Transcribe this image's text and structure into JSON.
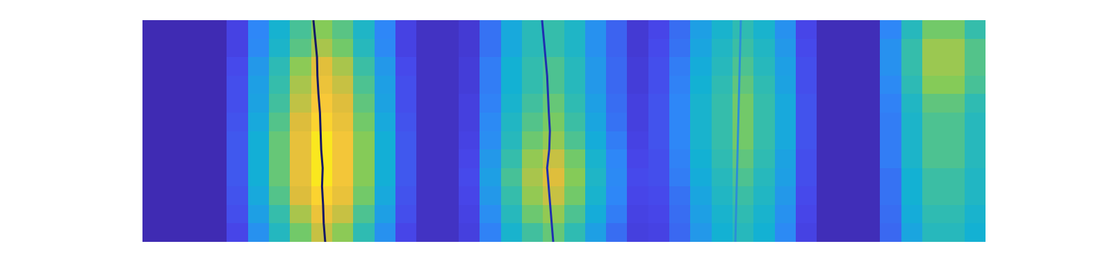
{
  "chart_data": {
    "type": "heatmap",
    "x": [
      0.5,
      1.5,
      2.5,
      3.5,
      4.5,
      5.5,
      6.5,
      7.5,
      8.5,
      9.5,
      10.5,
      11.5,
      12.5,
      13.5,
      14.5,
      15.5,
      16.5,
      17.5,
      18.5,
      19.5,
      20.5,
      21.5,
      22.5,
      23.5,
      24.5,
      25.5,
      26.5,
      27.5,
      28.5,
      29.5,
      30.5,
      31.5,
      32.5,
      33.5,
      34.5,
      35.5,
      36.5,
      37.5,
      38.5,
      39.5
    ],
    "y": [
      0.5,
      1.5,
      2.5,
      3.5,
      4.5,
      5.5,
      6.5,
      7.5,
      8.5,
      9.5,
      10.5,
      11.5
    ],
    "cells": [
      [
        0.02,
        0.02,
        0.02,
        0.02,
        0.12,
        0.28,
        0.44,
        0.6,
        0.72,
        0.64,
        0.48,
        0.28,
        0.12,
        0.05,
        0.05,
        0.1,
        0.24,
        0.4,
        0.52,
        0.58,
        0.48,
        0.32,
        0.2,
        0.1,
        0.11,
        0.19,
        0.3,
        0.38,
        0.45,
        0.38,
        0.26,
        0.11,
        0.03,
        0.03,
        0.03,
        0.19,
        0.34,
        0.45,
        0.45,
        0.38
      ],
      [
        0.02,
        0.02,
        0.02,
        0.02,
        0.14,
        0.32,
        0.5,
        0.68,
        0.81,
        0.72,
        0.54,
        0.32,
        0.14,
        0.05,
        0.05,
        0.11,
        0.27,
        0.45,
        0.59,
        0.65,
        0.54,
        0.36,
        0.23,
        0.11,
        0.12,
        0.2,
        0.32,
        0.4,
        0.48,
        0.4,
        0.28,
        0.12,
        0.03,
        0.03,
        0.03,
        0.2,
        0.36,
        0.48,
        0.48,
        0.4
      ],
      [
        0.02,
        0.02,
        0.02,
        0.02,
        0.15,
        0.35,
        0.55,
        0.75,
        0.9,
        0.8,
        0.6,
        0.35,
        0.15,
        0.05,
        0.05,
        0.12,
        0.3,
        0.5,
        0.65,
        0.72,
        0.6,
        0.4,
        0.25,
        0.12,
        0.13,
        0.21,
        0.34,
        0.43,
        0.51,
        0.43,
        0.3,
        0.13,
        0.03,
        0.03,
        0.03,
        0.21,
        0.38,
        0.51,
        0.51,
        0.43
      ],
      [
        0.02,
        0.02,
        0.02,
        0.02,
        0.16,
        0.37,
        0.58,
        0.79,
        0.95,
        0.84,
        0.63,
        0.37,
        0.16,
        0.05,
        0.05,
        0.13,
        0.32,
        0.53,
        0.68,
        0.76,
        0.63,
        0.42,
        0.26,
        0.13,
        0.14,
        0.23,
        0.36,
        0.45,
        0.54,
        0.45,
        0.32,
        0.14,
        0.03,
        0.03,
        0.03,
        0.21,
        0.38,
        0.51,
        0.51,
        0.43
      ],
      [
        0.02,
        0.02,
        0.02,
        0.02,
        0.16,
        0.37,
        0.58,
        0.79,
        0.95,
        0.84,
        0.63,
        0.37,
        0.16,
        0.05,
        0.05,
        0.12,
        0.3,
        0.5,
        0.65,
        0.72,
        0.6,
        0.4,
        0.25,
        0.12,
        0.14,
        0.24,
        0.38,
        0.48,
        0.57,
        0.48,
        0.33,
        0.14,
        0.03,
        0.03,
        0.03,
        0.23,
        0.41,
        0.54,
        0.54,
        0.45
      ],
      [
        0.02,
        0.02,
        0.02,
        0.02,
        0.16,
        0.37,
        0.58,
        0.79,
        0.95,
        0.84,
        0.63,
        0.37,
        0.16,
        0.05,
        0.05,
        0.11,
        0.27,
        0.45,
        0.59,
        0.65,
        0.54,
        0.36,
        0.23,
        0.11,
        0.15,
        0.25,
        0.4,
        0.5,
        0.6,
        0.5,
        0.35,
        0.15,
        0.03,
        0.03,
        0.03,
        0.23,
        0.41,
        0.54,
        0.54,
        0.45
      ],
      [
        0.02,
        0.02,
        0.02,
        0.02,
        0.15,
        0.35,
        0.55,
        0.75,
        0.9,
        0.8,
        0.6,
        0.35,
        0.15,
        0.05,
        0.05,
        0.1,
        0.26,
        0.43,
        0.55,
        0.61,
        0.51,
        0.34,
        0.21,
        0.1,
        0.15,
        0.25,
        0.4,
        0.5,
        0.6,
        0.5,
        0.35,
        0.15,
        0.03,
        0.03,
        0.03,
        0.23,
        0.41,
        0.54,
        0.54,
        0.45
      ],
      [
        0.02,
        0.02,
        0.02,
        0.02,
        0.14,
        0.33,
        0.52,
        0.71,
        0.86,
        0.76,
        0.57,
        0.33,
        0.14,
        0.05,
        0.05,
        0.1,
        0.24,
        0.4,
        0.52,
        0.58,
        0.48,
        0.32,
        0.2,
        0.1,
        0.15,
        0.25,
        0.4,
        0.5,
        0.6,
        0.5,
        0.35,
        0.15,
        0.03,
        0.03,
        0.03,
        0.24,
        0.43,
        0.57,
        0.57,
        0.48
      ],
      [
        0.02,
        0.02,
        0.02,
        0.02,
        0.14,
        0.32,
        0.5,
        0.68,
        0.81,
        0.72,
        0.54,
        0.32,
        0.14,
        0.05,
        0.05,
        0.09,
        0.23,
        0.38,
        0.49,
        0.54,
        0.45,
        0.3,
        0.19,
        0.09,
        0.14,
        0.24,
        0.38,
        0.48,
        0.57,
        0.48,
        0.33,
        0.14,
        0.03,
        0.03,
        0.03,
        0.26,
        0.47,
        0.63,
        0.63,
        0.53
      ],
      [
        0.02,
        0.02,
        0.02,
        0.02,
        0.13,
        0.3,
        0.47,
        0.64,
        0.77,
        0.68,
        0.51,
        0.3,
        0.13,
        0.05,
        0.05,
        0.09,
        0.23,
        0.38,
        0.49,
        0.54,
        0.45,
        0.3,
        0.19,
        0.09,
        0.14,
        0.23,
        0.36,
        0.45,
        0.54,
        0.45,
        0.32,
        0.14,
        0.03,
        0.03,
        0.03,
        0.28,
        0.5,
        0.66,
        0.66,
        0.55
      ],
      [
        0.02,
        0.02,
        0.02,
        0.02,
        0.11,
        0.26,
        0.41,
        0.56,
        0.68,
        0.6,
        0.45,
        0.26,
        0.11,
        0.05,
        0.05,
        0.08,
        0.21,
        0.35,
        0.46,
        0.5,
        0.42,
        0.28,
        0.18,
        0.08,
        0.13,
        0.21,
        0.34,
        0.43,
        0.51,
        0.43,
        0.3,
        0.13,
        0.03,
        0.03,
        0.03,
        0.28,
        0.5,
        0.66,
        0.66,
        0.55
      ],
      [
        0.02,
        0.02,
        0.02,
        0.02,
        0.11,
        0.25,
        0.39,
        0.53,
        0.63,
        0.56,
        0.42,
        0.25,
        0.11,
        0.05,
        0.05,
        0.08,
        0.21,
        0.35,
        0.46,
        0.5,
        0.42,
        0.28,
        0.18,
        0.08,
        0.12,
        0.2,
        0.32,
        0.4,
        0.48,
        0.4,
        0.28,
        0.12,
        0.03,
        0.03,
        0.03,
        0.25,
        0.45,
        0.6,
        0.6,
        0.5
      ]
    ],
    "color_range": [
      0,
      1
    ],
    "xlim": [
      0,
      40
    ],
    "ylim": [
      0,
      12
    ],
    "tick_labels": false,
    "grid": false,
    "series": [
      {
        "type": "line",
        "color": "#141866",
        "x": [
          8.67,
          8.6,
          8.57,
          8.52,
          8.55,
          8.48,
          8.45,
          8.42,
          8.35,
          8.3,
          8.28,
          8.2,
          8.11
        ],
        "y": [
          0,
          1,
          2,
          3,
          4,
          5,
          6,
          7,
          8,
          9,
          10,
          11,
          12
        ]
      },
      {
        "type": "line",
        "color": "#1f2fb0",
        "x": [
          19.49,
          19.42,
          19.35,
          19.28,
          19.2,
          19.3,
          19.33,
          19.28,
          19.25,
          19.2,
          19.12,
          19.05,
          18.96
        ],
        "y": [
          0,
          1,
          2,
          3,
          4,
          5,
          6,
          7,
          8,
          9,
          10,
          11,
          12
        ]
      },
      {
        "type": "line",
        "color": "#2a8fd8",
        "x": [
          28.13,
          28.15,
          28.17,
          28.19,
          28.21,
          28.23,
          28.25,
          28.27,
          28.3,
          28.32,
          28.34,
          28.36,
          28.39
        ],
        "y": [
          0,
          1,
          2,
          3,
          4,
          5,
          6,
          7,
          8,
          9,
          10,
          11,
          12
        ]
      }
    ]
  }
}
